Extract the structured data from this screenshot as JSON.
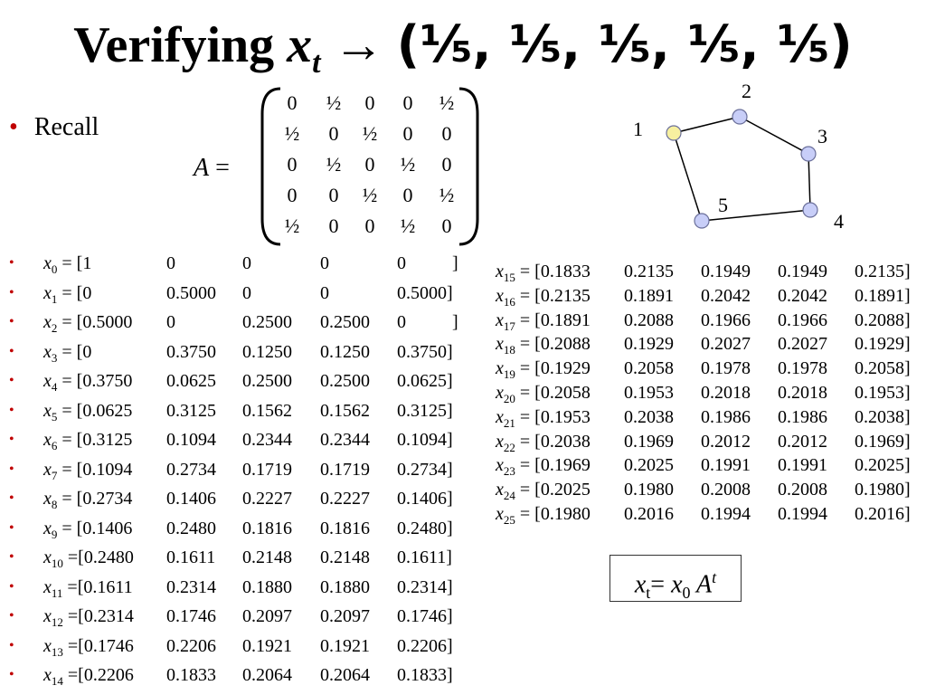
{
  "title": {
    "prefix": "Verifying ",
    "symbol": "x",
    "sub": "t",
    "arrow": "→",
    "tuple": "(⅕, ⅕, ⅕, ⅕, ⅕)"
  },
  "recall": "Recall",
  "matrix": {
    "name": "A",
    "equals": " =",
    "rows": [
      [
        "0",
        "½",
        "0",
        "0",
        "½"
      ],
      [
        "½",
        "0",
        "½",
        "0",
        "0"
      ],
      [
        "0",
        "½",
        "0",
        "½",
        "0"
      ],
      [
        "0",
        "0",
        "½",
        "0",
        "½"
      ],
      [
        "½",
        "0",
        "0",
        "½",
        "0"
      ]
    ]
  },
  "graph": {
    "nodes": [
      {
        "label": "1",
        "color": "#f7f0a0"
      },
      {
        "label": "2",
        "color": "#c8cef8"
      },
      {
        "label": "3",
        "color": "#c8cef8"
      },
      {
        "label": "4",
        "color": "#c8cef8"
      },
      {
        "label": "5",
        "color": "#c8cef8"
      }
    ],
    "edges": [
      [
        "1",
        "2"
      ],
      [
        "2",
        "3"
      ],
      [
        "3",
        "4"
      ],
      [
        "4",
        "5"
      ],
      [
        "5",
        "1"
      ]
    ]
  },
  "left_rows": [
    {
      "sub": "0",
      "eq": " = [1",
      "vals": [
        "0",
        "0",
        "0",
        "0",
        "]"
      ]
    },
    {
      "sub": "1",
      "eq": " = [0",
      "vals": [
        "0.5000",
        "0",
        "0",
        "0.5000]"
      ]
    },
    {
      "sub": "2",
      "eq": " = [0.5000",
      "vals": [
        "0",
        "0.2500",
        "0.2500",
        "0",
        "]"
      ]
    },
    {
      "sub": "3",
      "eq": " = [0",
      "vals": [
        "0.3750",
        "0.1250",
        "0.1250",
        "0.3750]"
      ]
    },
    {
      "sub": "4",
      "eq": " = [0.3750",
      "vals": [
        "0.0625",
        "0.2500",
        "0.2500",
        "0.0625]"
      ]
    },
    {
      "sub": "5",
      "eq": " = [0.0625",
      "vals": [
        "0.3125",
        "0.1562",
        "0.1562",
        "0.3125]"
      ]
    },
    {
      "sub": "6",
      "eq": " = [0.3125",
      "vals": [
        "0.1094",
        "0.2344",
        "0.2344",
        "0.1094]"
      ]
    },
    {
      "sub": "7",
      "eq": " = [0.1094",
      "vals": [
        "0.2734",
        "0.1719",
        "0.1719",
        "0.2734]"
      ]
    },
    {
      "sub": "8",
      "eq": " = [0.2734",
      "vals": [
        "0.1406",
        "0.2227",
        "0.2227",
        "0.1406]"
      ]
    },
    {
      "sub": "9",
      "eq": " = [0.1406",
      "vals": [
        "0.2480",
        "0.1816",
        "0.1816",
        "0.2480]"
      ]
    },
    {
      "sub": "10",
      "eq": " =[0.2480",
      "vals": [
        "0.1611",
        "0.2148",
        "0.2148",
        "0.1611]"
      ]
    },
    {
      "sub": "11",
      "eq": " =[0.1611",
      "vals": [
        "0.2314",
        "0.1880",
        "0.1880",
        "0.2314]"
      ]
    },
    {
      "sub": "12",
      "eq": " =[0.2314",
      "vals": [
        "0.1746",
        "0.2097",
        "0.2097",
        "0.1746]"
      ]
    },
    {
      "sub": "13",
      "eq": " =[0.1746",
      "vals": [
        "0.2206",
        "0.1921",
        "0.1921",
        "0.2206]"
      ]
    },
    {
      "sub": "14",
      "eq": " =[0.2206",
      "vals": [
        "0.1833",
        "0.2064",
        "0.2064",
        "0.1833]"
      ]
    }
  ],
  "right_rows": [
    {
      "sub": "15",
      "eq": " = [0.1833",
      "vals": [
        "0.2135",
        "0.1949",
        "0.1949",
        "0.2135]"
      ]
    },
    {
      "sub": "16",
      "eq": " = [0.2135",
      "vals": [
        "0.1891",
        "0.2042",
        "0.2042",
        "0.1891]"
      ]
    },
    {
      "sub": "17",
      "eq": " = [0.1891",
      "vals": [
        "0.2088",
        "0.1966",
        "0.1966",
        "0.2088]"
      ]
    },
    {
      "sub": "18",
      "eq": " = [0.2088",
      "vals": [
        "0.1929",
        "0.2027",
        "0.2027",
        "0.1929]"
      ]
    },
    {
      "sub": "19",
      "eq": " = [0.1929",
      "vals": [
        "0.2058",
        "0.1978",
        "0.1978",
        "0.2058]"
      ]
    },
    {
      "sub": "20",
      "eq": " = [0.2058",
      "vals": [
        "0.1953",
        "0.2018",
        "0.2018",
        "0.1953]"
      ]
    },
    {
      "sub": "21",
      "eq": " = [0.1953",
      "vals": [
        "0.2038",
        "0.1986",
        "0.1986",
        "0.2038]"
      ]
    },
    {
      "sub": "22",
      "eq": " = [0.2038",
      "vals": [
        "0.1969",
        "0.2012",
        "0.2012",
        "0.1969]"
      ]
    },
    {
      "sub": "23",
      "eq": " = [0.1969",
      "vals": [
        "0.2025",
        "0.1991",
        "0.1991",
        "0.2025]"
      ]
    },
    {
      "sub": "24",
      "eq": " = [0.2025",
      "vals": [
        "0.1980",
        "0.2008",
        "0.2008",
        "0.1980]"
      ]
    },
    {
      "sub": "25",
      "eq": " = [0.1980",
      "vals": [
        "0.2016",
        "0.1994",
        "0.1994",
        "0.2016]"
      ]
    }
  ],
  "bullet_char": "•",
  "formula": {
    "x": "x",
    "t": "t",
    "eq": "= ",
    "x0": "x",
    "zero": "0",
    "A": " A",
    "sup": "t"
  }
}
